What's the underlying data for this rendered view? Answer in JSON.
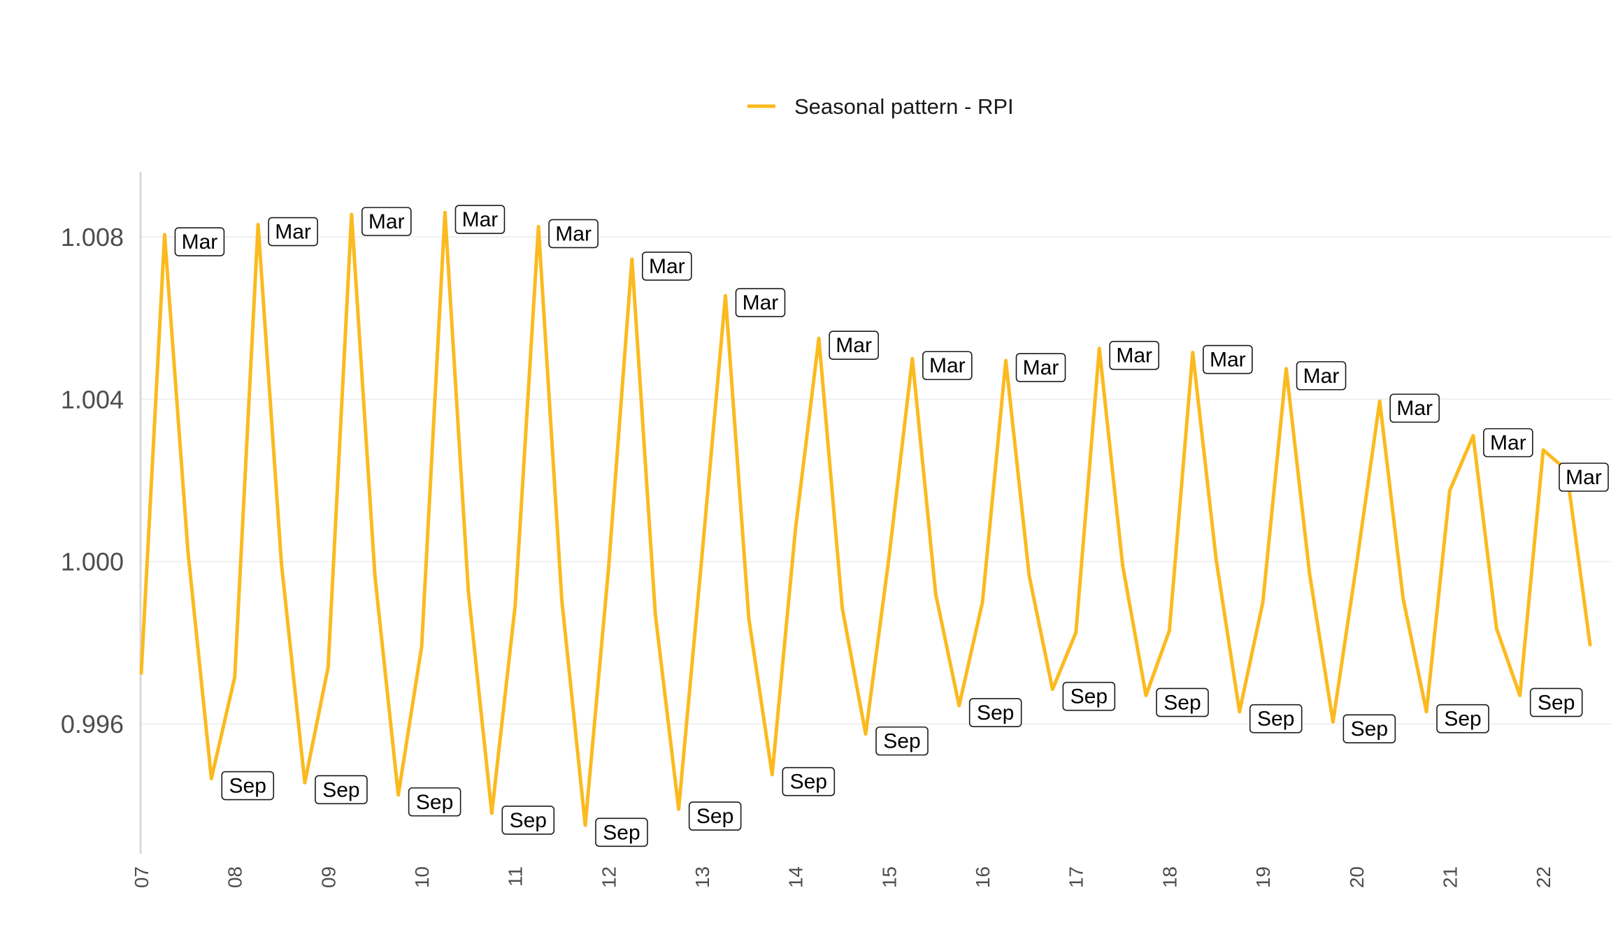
{
  "chart_data": {
    "type": "line",
    "title": "",
    "xlabel": "",
    "ylabel": "",
    "legend": {
      "position": "top",
      "entries": [
        "Seasonal pattern - RPI"
      ]
    },
    "grid": {
      "horizontal": true,
      "vertical": false
    },
    "ylim": [
      0.9928,
      1.0096
    ],
    "xlim": [
      2007.0,
      2022.62
    ],
    "y_ticks": [
      "0.996",
      "1.000",
      "1.004",
      "1.008"
    ],
    "y_tick_values": [
      0.996,
      1.0,
      1.004,
      1.008
    ],
    "x_tick_labels": [
      "07",
      "08",
      "09",
      "10",
      "11",
      "12",
      "13",
      "14",
      "15",
      "16",
      "17",
      "18",
      "19",
      "20",
      "21",
      "22"
    ],
    "x_tick_values": [
      2007,
      2008,
      2009,
      2010,
      2011,
      2012,
      2013,
      2014,
      2015,
      2016,
      2017,
      2018,
      2019,
      2020,
      2021,
      2022
    ],
    "colors": {
      "series": "#FBBA1F",
      "grid": "#EBEBEB",
      "axis": "#D9D9D9"
    },
    "series": [
      {
        "name": "Seasonal pattern - RPI",
        "x": [
          2007.0,
          2007.25,
          2007.5,
          2007.75,
          2008.0,
          2008.25,
          2008.5,
          2008.75,
          2009.0,
          2009.25,
          2009.5,
          2009.75,
          2010.0,
          2010.25,
          2010.5,
          2010.75,
          2011.0,
          2011.25,
          2011.5,
          2011.75,
          2012.0,
          2012.25,
          2012.5,
          2012.75,
          2013.0,
          2013.25,
          2013.5,
          2013.75,
          2014.0,
          2014.25,
          2014.5,
          2014.75,
          2015.0,
          2015.25,
          2015.5,
          2015.75,
          2016.0,
          2016.25,
          2016.5,
          2016.75,
          2017.0,
          2017.25,
          2017.5,
          2017.75,
          2018.0,
          2018.25,
          2018.5,
          2018.75,
          2019.0,
          2019.25,
          2019.5,
          2019.75,
          2020.0,
          2020.25,
          2020.5,
          2020.75,
          2021.0,
          2021.25,
          2021.5,
          2021.75,
          2022.0,
          2022.25,
          2022.5
        ],
        "values": [
          0.99725,
          1.00805,
          1.00025,
          0.99465,
          0.99715,
          1.0083,
          0.99995,
          0.99455,
          0.9974,
          1.00855,
          0.99965,
          0.99425,
          0.9979,
          1.0086,
          0.99925,
          0.9938,
          0.9989,
          1.00825,
          0.99905,
          0.9935,
          0.99985,
          1.00745,
          0.9987,
          0.9939,
          1.00015,
          1.00655,
          0.9986,
          0.99475,
          1.0008,
          1.0055,
          0.99885,
          0.99575,
          1.0001,
          1.005,
          0.9992,
          0.99645,
          0.999,
          1.00495,
          0.99965,
          0.99685,
          0.99825,
          1.00525,
          0.9999,
          0.9967,
          0.9983,
          1.00515,
          1.00005,
          0.9963,
          0.999,
          1.00475,
          0.9997,
          0.99605,
          0.9999,
          1.00395,
          0.9991,
          0.9963,
          1.00175,
          1.0031,
          0.99835,
          0.9967,
          1.00275,
          1.00225,
          0.99795
        ]
      }
    ],
    "annotations": [
      {
        "label": "Mar",
        "x": 2007.25,
        "y": 1.00805
      },
      {
        "label": "Sep",
        "x": 2007.75,
        "y": 0.99465
      },
      {
        "label": "Mar",
        "x": 2008.25,
        "y": 1.0083
      },
      {
        "label": "Sep",
        "x": 2008.75,
        "y": 0.99455
      },
      {
        "label": "Mar",
        "x": 2009.25,
        "y": 1.00855
      },
      {
        "label": "Sep",
        "x": 2009.75,
        "y": 0.99425
      },
      {
        "label": "Mar",
        "x": 2010.25,
        "y": 1.0086
      },
      {
        "label": "Sep",
        "x": 2010.75,
        "y": 0.9938
      },
      {
        "label": "Mar",
        "x": 2011.25,
        "y": 1.00825
      },
      {
        "label": "Sep",
        "x": 2011.75,
        "y": 0.9935
      },
      {
        "label": "Mar",
        "x": 2012.25,
        "y": 1.00745
      },
      {
        "label": "Sep",
        "x": 2012.75,
        "y": 0.9939
      },
      {
        "label": "Mar",
        "x": 2013.25,
        "y": 1.00655
      },
      {
        "label": "Sep",
        "x": 2013.75,
        "y": 0.99475
      },
      {
        "label": "Mar",
        "x": 2014.25,
        "y": 1.0055
      },
      {
        "label": "Sep",
        "x": 2014.75,
        "y": 0.99575
      },
      {
        "label": "Mar",
        "x": 2015.25,
        "y": 1.005
      },
      {
        "label": "Sep",
        "x": 2015.75,
        "y": 0.99645
      },
      {
        "label": "Mar",
        "x": 2016.25,
        "y": 1.00495
      },
      {
        "label": "Sep",
        "x": 2016.75,
        "y": 0.99685
      },
      {
        "label": "Mar",
        "x": 2017.25,
        "y": 1.00525
      },
      {
        "label": "Sep",
        "x": 2017.75,
        "y": 0.9967
      },
      {
        "label": "Mar",
        "x": 2018.25,
        "y": 1.00515
      },
      {
        "label": "Sep",
        "x": 2018.75,
        "y": 0.9963
      },
      {
        "label": "Mar",
        "x": 2019.25,
        "y": 1.00475
      },
      {
        "label": "Sep",
        "x": 2019.75,
        "y": 0.99605
      },
      {
        "label": "Mar",
        "x": 2020.25,
        "y": 1.00395
      },
      {
        "label": "Sep",
        "x": 2020.75,
        "y": 0.9963
      },
      {
        "label": "Mar",
        "x": 2021.25,
        "y": 1.0031
      },
      {
        "label": "Sep",
        "x": 2021.75,
        "y": 0.9967
      },
      {
        "label": "Mar",
        "x": 2022.25,
        "y": 1.00225
      }
    ]
  }
}
